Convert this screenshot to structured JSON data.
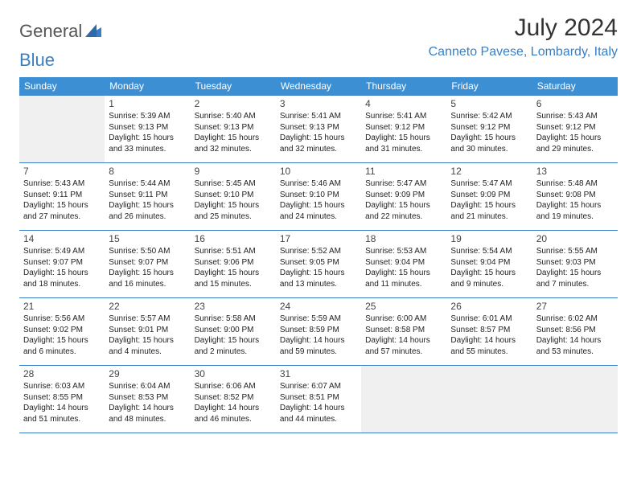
{
  "brand": {
    "part1": "General",
    "part2": "Blue"
  },
  "title": "July 2024",
  "location": "Canneto Pavese, Lombardy, Italy",
  "colors": {
    "header_bg": "#3d8fd4",
    "header_text": "#ffffff",
    "accent": "#3a7fc4",
    "grid_line": "#3a7fc4",
    "body_text": "#222222",
    "title_text": "#333333",
    "empty_bg": "#f0f0f0",
    "page_bg": "#ffffff"
  },
  "typography": {
    "title_fontsize": 30,
    "location_fontsize": 16,
    "weekday_fontsize": 12,
    "daynum_fontsize": 12,
    "info_fontsize": 10,
    "font_family": "Arial"
  },
  "weekdays": [
    "Sunday",
    "Monday",
    "Tuesday",
    "Wednesday",
    "Thursday",
    "Friday",
    "Saturday"
  ],
  "first_weekday_index": 1,
  "days": [
    {
      "n": 1,
      "sunrise": "5:39 AM",
      "sunset": "9:13 PM",
      "daylight": "15 hours and 33 minutes."
    },
    {
      "n": 2,
      "sunrise": "5:40 AM",
      "sunset": "9:13 PM",
      "daylight": "15 hours and 32 minutes."
    },
    {
      "n": 3,
      "sunrise": "5:41 AM",
      "sunset": "9:13 PM",
      "daylight": "15 hours and 32 minutes."
    },
    {
      "n": 4,
      "sunrise": "5:41 AM",
      "sunset": "9:12 PM",
      "daylight": "15 hours and 31 minutes."
    },
    {
      "n": 5,
      "sunrise": "5:42 AM",
      "sunset": "9:12 PM",
      "daylight": "15 hours and 30 minutes."
    },
    {
      "n": 6,
      "sunrise": "5:43 AM",
      "sunset": "9:12 PM",
      "daylight": "15 hours and 29 minutes."
    },
    {
      "n": 7,
      "sunrise": "5:43 AM",
      "sunset": "9:11 PM",
      "daylight": "15 hours and 27 minutes."
    },
    {
      "n": 8,
      "sunrise": "5:44 AM",
      "sunset": "9:11 PM",
      "daylight": "15 hours and 26 minutes."
    },
    {
      "n": 9,
      "sunrise": "5:45 AM",
      "sunset": "9:10 PM",
      "daylight": "15 hours and 25 minutes."
    },
    {
      "n": 10,
      "sunrise": "5:46 AM",
      "sunset": "9:10 PM",
      "daylight": "15 hours and 24 minutes."
    },
    {
      "n": 11,
      "sunrise": "5:47 AM",
      "sunset": "9:09 PM",
      "daylight": "15 hours and 22 minutes."
    },
    {
      "n": 12,
      "sunrise": "5:47 AM",
      "sunset": "9:09 PM",
      "daylight": "15 hours and 21 minutes."
    },
    {
      "n": 13,
      "sunrise": "5:48 AM",
      "sunset": "9:08 PM",
      "daylight": "15 hours and 19 minutes."
    },
    {
      "n": 14,
      "sunrise": "5:49 AM",
      "sunset": "9:07 PM",
      "daylight": "15 hours and 18 minutes."
    },
    {
      "n": 15,
      "sunrise": "5:50 AM",
      "sunset": "9:07 PM",
      "daylight": "15 hours and 16 minutes."
    },
    {
      "n": 16,
      "sunrise": "5:51 AM",
      "sunset": "9:06 PM",
      "daylight": "15 hours and 15 minutes."
    },
    {
      "n": 17,
      "sunrise": "5:52 AM",
      "sunset": "9:05 PM",
      "daylight": "15 hours and 13 minutes."
    },
    {
      "n": 18,
      "sunrise": "5:53 AM",
      "sunset": "9:04 PM",
      "daylight": "15 hours and 11 minutes."
    },
    {
      "n": 19,
      "sunrise": "5:54 AM",
      "sunset": "9:04 PM",
      "daylight": "15 hours and 9 minutes."
    },
    {
      "n": 20,
      "sunrise": "5:55 AM",
      "sunset": "9:03 PM",
      "daylight": "15 hours and 7 minutes."
    },
    {
      "n": 21,
      "sunrise": "5:56 AM",
      "sunset": "9:02 PM",
      "daylight": "15 hours and 6 minutes."
    },
    {
      "n": 22,
      "sunrise": "5:57 AM",
      "sunset": "9:01 PM",
      "daylight": "15 hours and 4 minutes."
    },
    {
      "n": 23,
      "sunrise": "5:58 AM",
      "sunset": "9:00 PM",
      "daylight": "15 hours and 2 minutes."
    },
    {
      "n": 24,
      "sunrise": "5:59 AM",
      "sunset": "8:59 PM",
      "daylight": "14 hours and 59 minutes."
    },
    {
      "n": 25,
      "sunrise": "6:00 AM",
      "sunset": "8:58 PM",
      "daylight": "14 hours and 57 minutes."
    },
    {
      "n": 26,
      "sunrise": "6:01 AM",
      "sunset": "8:57 PM",
      "daylight": "14 hours and 55 minutes."
    },
    {
      "n": 27,
      "sunrise": "6:02 AM",
      "sunset": "8:56 PM",
      "daylight": "14 hours and 53 minutes."
    },
    {
      "n": 28,
      "sunrise": "6:03 AM",
      "sunset": "8:55 PM",
      "daylight": "14 hours and 51 minutes."
    },
    {
      "n": 29,
      "sunrise": "6:04 AM",
      "sunset": "8:53 PM",
      "daylight": "14 hours and 48 minutes."
    },
    {
      "n": 30,
      "sunrise": "6:06 AM",
      "sunset": "8:52 PM",
      "daylight": "14 hours and 46 minutes."
    },
    {
      "n": 31,
      "sunrise": "6:07 AM",
      "sunset": "8:51 PM",
      "daylight": "14 hours and 44 minutes."
    }
  ],
  "labels": {
    "sunrise": "Sunrise:",
    "sunset": "Sunset:",
    "daylight": "Daylight:"
  }
}
